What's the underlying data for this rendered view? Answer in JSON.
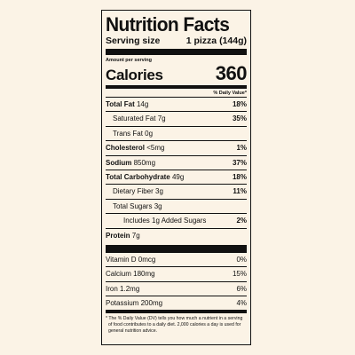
{
  "label": {
    "title": "Nutrition Facts",
    "serving_size_label": "Serving size",
    "serving_size_value": "1 pizza (144g)",
    "amount_per_serving": "Amount per serving",
    "calories_label": "Calories",
    "calories_value": "360",
    "daily_value_header": "% Daily Value*",
    "nutrients": [
      {
        "name": "Total Fat",
        "amount": "14g",
        "dv": "18%"
      },
      {
        "name": "Saturated Fat",
        "amount": "7g",
        "dv": "35%"
      },
      {
        "name": "Trans Fat",
        "amount": "0g",
        "dv": ""
      },
      {
        "name": "Cholesterol",
        "amount": "<5mg",
        "dv": "1%"
      },
      {
        "name": "Sodium",
        "amount": "850mg",
        "dv": "37%"
      },
      {
        "name": "Total Carbohydrate",
        "amount": "49g",
        "dv": "18%"
      },
      {
        "name": "Dietary Fiber",
        "amount": "3g",
        "dv": "11%"
      },
      {
        "name": "Total Sugars",
        "amount": "3g",
        "dv": ""
      },
      {
        "name": "Includes 1g Added Sugars",
        "amount": "",
        "dv": "2%"
      },
      {
        "name": "Protein",
        "amount": "7g",
        "dv": ""
      }
    ],
    "vitamins": [
      {
        "name": "Vitamin D",
        "amount": "0mcg",
        "dv": "0%"
      },
      {
        "name": "Calcium",
        "amount": "180mg",
        "dv": "15%"
      },
      {
        "name": "Iron",
        "amount": "1.2mg",
        "dv": "6%"
      },
      {
        "name": "Potassium",
        "amount": "200mg",
        "dv": "4%"
      }
    ],
    "footnote": "* The % Daily Value (DV) tells you how much a nutrient in a serving of food contributes to a daily diet. 2,000 calories a day is used for general nutrition advice."
  }
}
